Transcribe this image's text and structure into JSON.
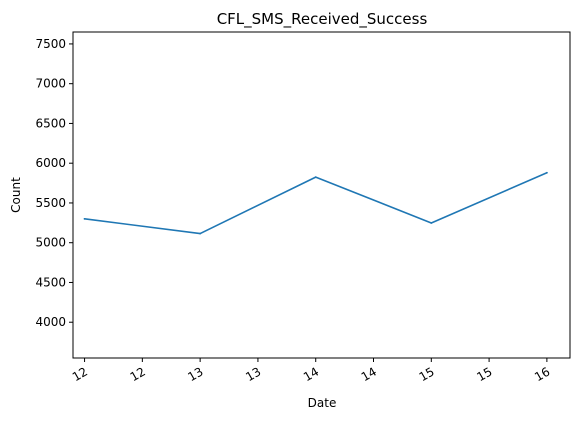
{
  "chart_data": {
    "type": "line",
    "title": "CFL_SMS_Received_Success",
    "xlabel": "Date",
    "ylabel": "Count",
    "ylim": [
      3550,
      7650
    ],
    "xlim": [
      11.9,
      16.2
    ],
    "y_ticks": [
      4000,
      4500,
      5000,
      5500,
      6000,
      6500,
      7000,
      7500
    ],
    "x_ticks": [
      {
        "value": 12.0,
        "label": "12"
      },
      {
        "value": 12.5,
        "label": "12"
      },
      {
        "value": 13.0,
        "label": "13"
      },
      {
        "value": 13.5,
        "label": "13"
      },
      {
        "value": 14.0,
        "label": "14"
      },
      {
        "value": 14.5,
        "label": "14"
      },
      {
        "value": 15.0,
        "label": "15"
      },
      {
        "value": 15.5,
        "label": "15"
      },
      {
        "value": 16.0,
        "label": "16"
      }
    ],
    "series": [
      {
        "color": "#1f77b4",
        "x": [
          12,
          13,
          14,
          15,
          16
        ],
        "values": [
          5300,
          5115,
          5825,
          5248,
          5880
        ]
      }
    ],
    "grid": false,
    "legend": "none"
  }
}
